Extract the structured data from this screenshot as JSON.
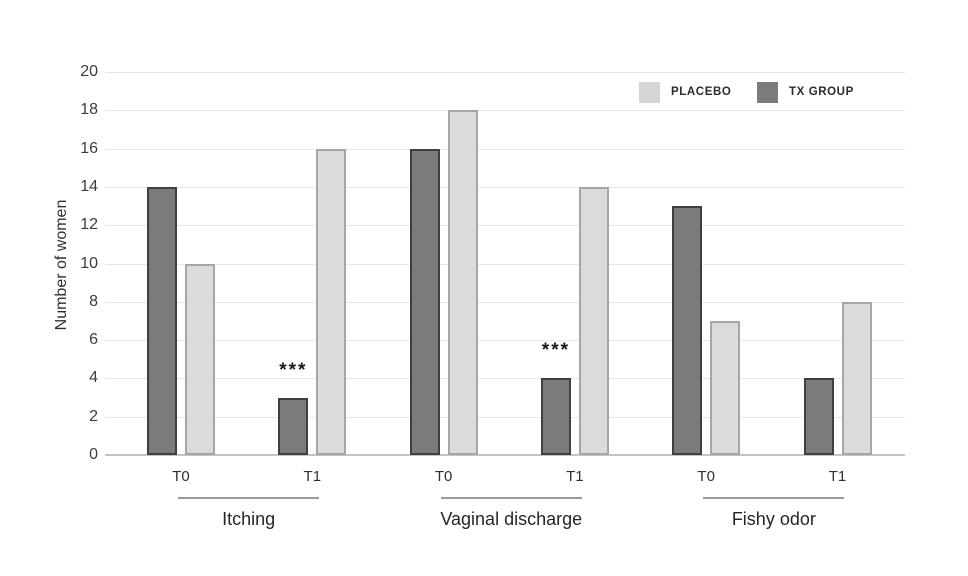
{
  "chart_data": {
    "type": "bar",
    "title": "",
    "ylabel": "Number of women",
    "xlabel": "",
    "ylim": [
      0,
      20
    ],
    "ytick_step": 2,
    "grid": true,
    "legend_position": "top-right",
    "x_labels": [
      "T0",
      "T1",
      "T0",
      "T1",
      "T0",
      "T1"
    ],
    "group_labels": [
      "Itching",
      "Vaginal discharge",
      "Fishy odor"
    ],
    "series": [
      {
        "name": "TX GROUP",
        "color": "#7b7b7b",
        "border_color": "#3f3f3f",
        "values": [
          14,
          3,
          16,
          4,
          13,
          4
        ]
      },
      {
        "name": "PLACEBO",
        "color": "#dbdbdb",
        "border_color": "#a6a6a6",
        "values": [
          10,
          16,
          18,
          14,
          7,
          8
        ]
      }
    ],
    "annotations": [
      {
        "text": "***",
        "series": "TX GROUP",
        "x_index": 1
      },
      {
        "text": "***",
        "series": "TX GROUP",
        "x_index": 3
      }
    ],
    "legend": {
      "items": [
        {
          "label": "PLACEBO",
          "color": "#d6d6d6"
        },
        {
          "label": "TX GROUP",
          "color": "#7b7b7b"
        }
      ]
    }
  }
}
